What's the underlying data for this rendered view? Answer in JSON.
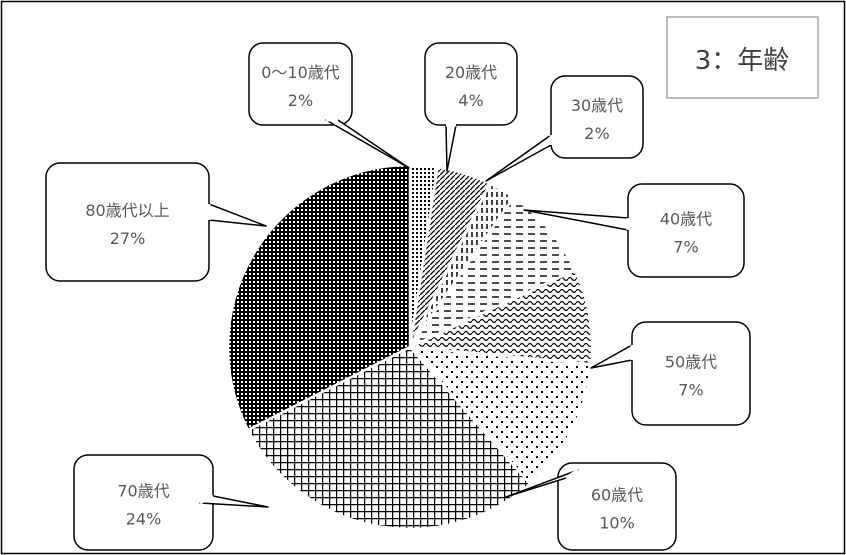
{
  "chart_data": {
    "type": "pie",
    "title": "3：年齢",
    "categories": [
      "0〜10歳代",
      "20歳代",
      "30歳代",
      "40歳代",
      "50歳代",
      "60歳代",
      "70歳代",
      "80歳代以上"
    ],
    "values": [
      2,
      4,
      2,
      7,
      7,
      10,
      24,
      27
    ],
    "value_labels": [
      "2%",
      "4%",
      "2%",
      "7%",
      "7%",
      "10%",
      "24%",
      "27%"
    ],
    "data_label_position": "callouts",
    "legend": "none",
    "fill_patterns": [
      "dotted-grid",
      "diagonal-hatch",
      "vertical-dashes",
      "horizontal-dashes",
      "wave",
      "sparse-dots",
      "grid",
      "dense-checker"
    ]
  }
}
